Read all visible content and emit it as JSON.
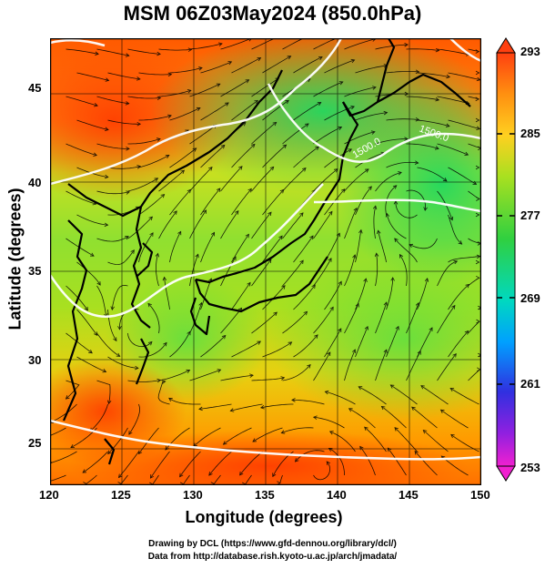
{
  "title": "MSM 06Z03May2024 (850.0hPa)",
  "map": {
    "xlabel": "Longitude (degrees)",
    "ylabel": "Latitude  (degrees)",
    "lon_ticks": [
      "120",
      "125",
      "130",
      "135",
      "140",
      "145",
      "150"
    ],
    "lat_ticks": [
      "45",
      "40",
      "35",
      "30",
      "25"
    ],
    "lon_range": [
      120,
      150
    ],
    "lat_range": [
      22.4,
      47.6
    ],
    "grid": true,
    "field": "temperature (K) with streamlines"
  },
  "colorbar": {
    "ticks": [
      "293",
      "285",
      "277",
      "269",
      "261",
      "253"
    ],
    "range": [
      253,
      293
    ],
    "colors": [
      "#e000e0",
      "#4040ff",
      "#00c0ff",
      "#00e0a0",
      "#40d040",
      "#b0e020",
      "#ffa000",
      "#ff3000"
    ]
  },
  "contour_labels": [
    "1500.0",
    "1500.0"
  ],
  "credits": {
    "line1": "Drawing by DCL (https://www.gfd-dennou.org/library/dcl/)",
    "line2": "Data from http://database.rish.kyoto-u.ac.jp/arch/jmadata/"
  }
}
